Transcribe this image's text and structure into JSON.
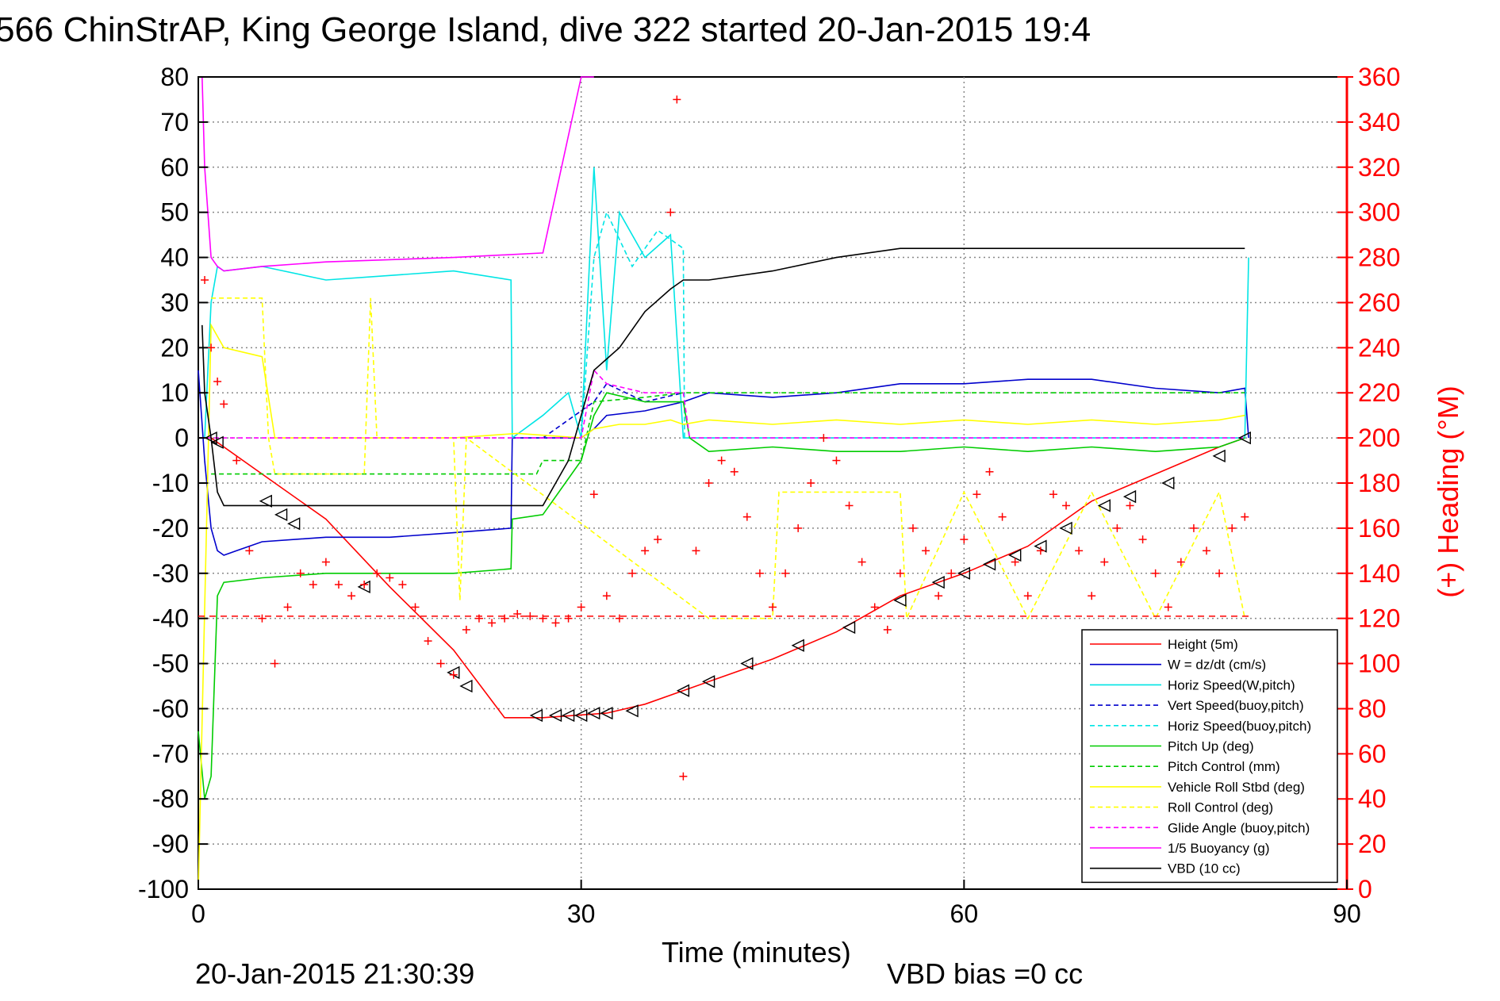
{
  "figure": {
    "title": "566 ChinStrAP, King George Island, dive 322 started 20-Jan-2015 19:4",
    "footer_left": "20-Jan-2015 21:30:39",
    "footer_right": "VBD bias =0 cc"
  },
  "chart_data": {
    "type": "line",
    "title": "566 ChinStrAP, King George Island, dive 322 started 20-Jan-2015 19:4",
    "xlabel": "Time (minutes)",
    "ylabel_left": "",
    "ylabel_right": "(+) Heading (°M)",
    "xlim": [
      0,
      90
    ],
    "ylim_left": [
      -100,
      80
    ],
    "ylim_right": [
      0,
      360
    ],
    "x_ticks": [
      0,
      30,
      60,
      90
    ],
    "y_ticks_left": [
      80,
      70,
      60,
      50,
      40,
      30,
      20,
      10,
      0,
      -10,
      -20,
      -30,
      -40,
      -50,
      -60,
      -70,
      -80,
      -90,
      -100
    ],
    "y_ticks_right": [
      360,
      340,
      320,
      300,
      280,
      260,
      240,
      220,
      200,
      180,
      160,
      140,
      120,
      100,
      80,
      60,
      40,
      20,
      0
    ],
    "grid": true,
    "legend_position": "bottom-right",
    "colors": {
      "height": "#ff0000",
      "w": "#0000cc",
      "horiz_speed": "#00e5e5",
      "pitch": "#00cc00",
      "roll": "#ffff00",
      "glide": "#ff00ff",
      "buoyancy": "#ff00ff",
      "vbd": "#000000",
      "heading": "#ff0000"
    },
    "series": [
      {
        "name": "Height (5m)",
        "color": "#ff0000",
        "dash": "",
        "x": [
          0,
          1,
          5,
          10,
          15,
          20,
          24,
          27,
          32,
          35,
          40,
          45,
          50,
          55,
          60,
          65,
          70,
          75,
          80,
          82
        ],
        "y": [
          0,
          0,
          -8,
          -18,
          -33,
          -47,
          -62,
          -62,
          -61,
          -59,
          -54,
          -49,
          -43,
          -35,
          -30,
          -24,
          -14,
          -8,
          -2,
          0
        ]
      },
      {
        "name": "W = dz/dt (cm/s)",
        "color": "#0000cc",
        "dash": "",
        "x": [
          0,
          0.5,
          1,
          1.5,
          2,
          3,
          5,
          10,
          15,
          20,
          24.5,
          24.6,
          27,
          30,
          31,
          32,
          35,
          38,
          40,
          45,
          50,
          55,
          60,
          65,
          70,
          75,
          80,
          82,
          82.3
        ],
        "y": [
          15,
          -5,
          -20,
          -25,
          -26,
          -25,
          -23,
          -22,
          -22,
          -21,
          -20,
          0,
          0,
          0,
          2,
          5,
          6,
          8,
          10,
          9,
          10,
          12,
          12,
          13,
          13,
          11,
          10,
          11,
          0
        ]
      },
      {
        "name": "Horiz Speed(W,pitch)",
        "color": "#00e5e5",
        "dash": "",
        "x": [
          0.5,
          1,
          1.5,
          2,
          5,
          10,
          15,
          20,
          24.5,
          24.6,
          27,
          29,
          30,
          31,
          32,
          33,
          35,
          37,
          38,
          38.1,
          60,
          70,
          82,
          82.3
        ],
        "y": [
          0,
          30,
          38,
          37,
          38,
          35,
          36,
          37,
          35,
          0,
          5,
          10,
          0,
          60,
          15,
          50,
          40,
          45,
          0,
          0,
          0,
          0,
          0,
          40
        ]
      },
      {
        "name": "Vert Speed(buoy,pitch)",
        "color": "#0000cc",
        "dash": "6,4",
        "x": [
          27,
          31,
          32,
          35,
          38
        ],
        "y": [
          0,
          8,
          12,
          8,
          10
        ]
      },
      {
        "name": "Horiz Speed(buoy,pitch)",
        "color": "#00e5e5",
        "dash": "6,4",
        "x": [
          30,
          31,
          32,
          34,
          36,
          38,
          38.1
        ],
        "y": [
          0,
          40,
          50,
          38,
          46,
          42,
          0
        ]
      },
      {
        "name": "Pitch Up (deg)",
        "color": "#00cc00",
        "dash": "",
        "x": [
          0,
          0.5,
          1,
          1.5,
          2,
          5,
          10,
          15,
          20,
          24.5,
          24.6,
          27,
          30,
          31,
          32,
          35,
          38,
          38.5,
          40,
          45,
          50,
          55,
          60,
          65,
          70,
          75,
          80,
          82
        ],
        "y": [
          -65,
          -80,
          -75,
          -35,
          -32,
          -31,
          -30,
          -30,
          -30,
          -29,
          -18,
          -17,
          -5,
          5,
          10,
          8,
          8,
          0,
          -3,
          -2,
          -3,
          -3,
          -2,
          -3,
          -2,
          -3,
          -2,
          0
        ]
      },
      {
        "name": "Pitch Control (mm)",
        "color": "#00cc00",
        "dash": "6,4",
        "x": [
          1,
          2,
          10,
          20,
          26.5,
          27,
          30,
          31,
          35,
          38,
          40,
          50,
          60,
          70,
          80,
          82
        ],
        "y": [
          -8,
          -8,
          -8,
          -8,
          -8,
          -5,
          -5,
          8,
          9,
          10,
          10,
          10,
          10,
          10,
          10,
          10
        ]
      },
      {
        "name": "Vehicle Roll Stbd (deg)",
        "color": "#ffff00",
        "dash": "",
        "x": [
          0,
          1,
          2,
          5,
          6,
          7,
          10,
          20,
          25,
          30,
          31,
          33,
          35,
          37,
          38,
          40,
          45,
          50,
          55,
          60,
          65,
          70,
          75,
          80,
          82
        ],
        "y": [
          -100,
          25,
          20,
          18,
          0,
          0,
          0,
          0,
          1,
          0,
          2,
          3,
          3,
          4,
          3,
          4,
          3,
          4,
          3,
          4,
          3,
          4,
          3,
          4,
          5
        ]
      },
      {
        "name": "Roll Control (deg)",
        "color": "#ffff00",
        "dash": "6,4",
        "x": [
          1,
          5,
          5.5,
          6,
          13,
          13.5,
          14,
          20,
          20.5,
          21,
          40,
          45,
          45.5,
          55,
          55.5,
          60,
          65,
          70,
          75,
          80,
          82
        ],
        "y": [
          31,
          31,
          0,
          -8,
          -8,
          31,
          0,
          0,
          -36,
          0,
          -40,
          -40,
          -12,
          -12,
          -40,
          -12,
          -40,
          -12,
          -40,
          -12,
          -40
        ]
      },
      {
        "name": "Glide Angle (buoy,pitch)",
        "color": "#ff00ff",
        "dash": "6,4",
        "x": [
          0,
          30,
          31,
          32,
          35,
          38,
          38.5,
          82
        ],
        "y": [
          0,
          0,
          15,
          12,
          10,
          10,
          0,
          0
        ]
      },
      {
        "name": "1/5 Buoyancy (g)",
        "color": "#ff00ff",
        "dash": "",
        "x": [
          0.3,
          0.5,
          1,
          1.5,
          2,
          5,
          10,
          20,
          27,
          30,
          31
        ],
        "y": [
          80,
          60,
          40,
          38,
          37,
          38,
          39,
          40,
          41,
          80,
          80
        ]
      },
      {
        "name": "VBD (10 cc)",
        "color": "#000000",
        "dash": "",
        "x": [
          0.3,
          0.5,
          1,
          1.5,
          2,
          10,
          20,
          27,
          29,
          30,
          31,
          33,
          35,
          37,
          38,
          40,
          45,
          50,
          55,
          60,
          70,
          82
        ],
        "y": [
          25,
          10,
          0,
          -12,
          -15,
          -15,
          -15,
          -15,
          -5,
          5,
          15,
          20,
          28,
          33,
          35,
          35,
          37,
          40,
          42,
          42,
          42,
          42
        ]
      }
    ],
    "heading": {
      "name": "(+) Heading (°M)",
      "color": "#ff0000",
      "marker": "+",
      "reference_line": 121,
      "x": [
        0.5,
        1,
        1.5,
        2,
        3,
        4,
        5,
        6,
        7,
        8,
        9,
        10,
        11,
        12,
        13,
        14,
        15,
        16,
        17,
        18,
        19,
        20,
        21,
        22,
        23,
        24,
        25,
        26,
        27,
        28,
        29,
        30,
        31,
        32,
        33,
        34,
        35,
        36,
        37,
        37.5,
        38,
        39,
        40,
        41,
        42,
        43,
        44,
        45,
        46,
        47,
        48,
        49,
        50,
        51,
        52,
        53,
        54,
        55,
        56,
        57,
        58,
        59,
        60,
        61,
        62,
        63,
        64,
        65,
        66,
        67,
        68,
        69,
        70,
        71,
        72,
        73,
        74,
        75,
        76,
        77,
        78,
        79,
        80,
        81,
        82
      ],
      "y": [
        270,
        240,
        225,
        215,
        190,
        150,
        120,
        100,
        125,
        140,
        135,
        145,
        135,
        130,
        135,
        140,
        138,
        135,
        125,
        110,
        100,
        95,
        115,
        120,
        118,
        120,
        122,
        121,
        120,
        118,
        120,
        125,
        175,
        130,
        120,
        140,
        150,
        155,
        300,
        350,
        50,
        150,
        180,
        190,
        185,
        165,
        140,
        125,
        140,
        160,
        180,
        200,
        190,
        170,
        145,
        125,
        115,
        140,
        160,
        150,
        130,
        140,
        155,
        175,
        185,
        165,
        145,
        130,
        150,
        175,
        170,
        150,
        130,
        145,
        160,
        170,
        155,
        140,
        125,
        145,
        160,
        150,
        140,
        160,
        165
      ]
    },
    "height_markers": {
      "x": [
        1,
        1.5,
        5.3,
        6.5,
        7.5,
        13,
        20,
        21,
        26.5,
        28,
        29,
        30,
        31,
        32,
        34,
        38,
        40,
        43,
        47,
        51,
        55,
        58,
        60,
        62,
        64,
        66,
        68,
        71,
        73,
        76,
        80,
        82
      ],
      "y": [
        0,
        -1,
        -14,
        -17,
        -19,
        -33,
        -52,
        -55,
        -61.5,
        -61.5,
        -61.5,
        -61.5,
        -61,
        -61,
        -60.5,
        -56,
        -54,
        -50,
        -46,
        -42,
        -36,
        -32,
        -30,
        -28,
        -26,
        -24,
        -20,
        -15,
        -13,
        -10,
        -4,
        0
      ]
    }
  }
}
